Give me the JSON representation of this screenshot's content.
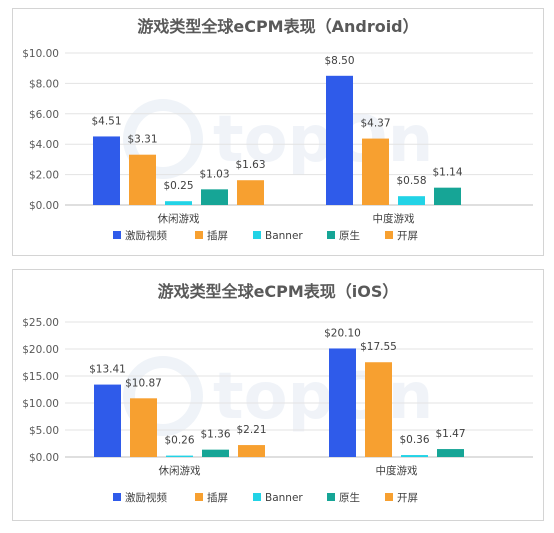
{
  "colors": {
    "激励视频": "#2f5bea",
    "插屏": "#f7a030",
    "Banner": "#22d3e6",
    "原生": "#16a596",
    "开屏": "#f7a030"
  },
  "watermark": "topOn",
  "chart_data": [
    {
      "type": "bar",
      "title": "游戏类型全球eCPM表现（Android）",
      "categories": [
        "休闲游戏",
        "中度游戏"
      ],
      "ylim": [
        0,
        10
      ],
      "yticks": [
        "$0.00",
        "$2.00",
        "$4.00",
        "$6.00",
        "$8.00",
        "$10.00"
      ],
      "ytick_values": [
        0,
        2,
        4,
        6,
        8,
        10
      ],
      "legend_position": "bottom",
      "series": [
        {
          "name": "激励视频",
          "values": [
            4.51,
            8.5
          ],
          "labels": [
            "$4.51",
            "$8.50"
          ]
        },
        {
          "name": "插屏",
          "values": [
            3.31,
            4.37
          ],
          "labels": [
            "$3.31",
            "$4.37"
          ]
        },
        {
          "name": "Banner",
          "values": [
            0.25,
            0.58
          ],
          "labels": [
            "$0.25",
            "$0.58"
          ]
        },
        {
          "name": "原生",
          "values": [
            1.03,
            1.14
          ],
          "labels": [
            "$1.03",
            "$1.14"
          ]
        },
        {
          "name": "开屏",
          "values": [
            1.63,
            null
          ],
          "labels": [
            "$1.63",
            null
          ]
        }
      ]
    },
    {
      "type": "bar",
      "title": "游戏类型全球eCPM表现（iOS）",
      "categories": [
        "休闲游戏",
        "中度游戏"
      ],
      "ylim": [
        0,
        25
      ],
      "yticks": [
        "$0.00",
        "$5.00",
        "$10.00",
        "$15.00",
        "$20.00",
        "$25.00"
      ],
      "ytick_values": [
        0,
        5,
        10,
        15,
        20,
        25
      ],
      "legend_position": "bottom",
      "series": [
        {
          "name": "激励视频",
          "values": [
            13.41,
            20.1
          ],
          "labels": [
            "$13.41",
            "$20.10"
          ]
        },
        {
          "name": "插屏",
          "values": [
            10.87,
            17.55
          ],
          "labels": [
            "$10.87",
            "$17.55"
          ]
        },
        {
          "name": "Banner",
          "values": [
            0.26,
            0.36
          ],
          "labels": [
            "$0.26",
            "$0.36"
          ]
        },
        {
          "name": "原生",
          "values": [
            1.36,
            1.47
          ],
          "labels": [
            "$1.36",
            "$1.47"
          ]
        },
        {
          "name": "开屏",
          "values": [
            2.21,
            null
          ],
          "labels": [
            "$2.21",
            null
          ]
        }
      ]
    }
  ]
}
